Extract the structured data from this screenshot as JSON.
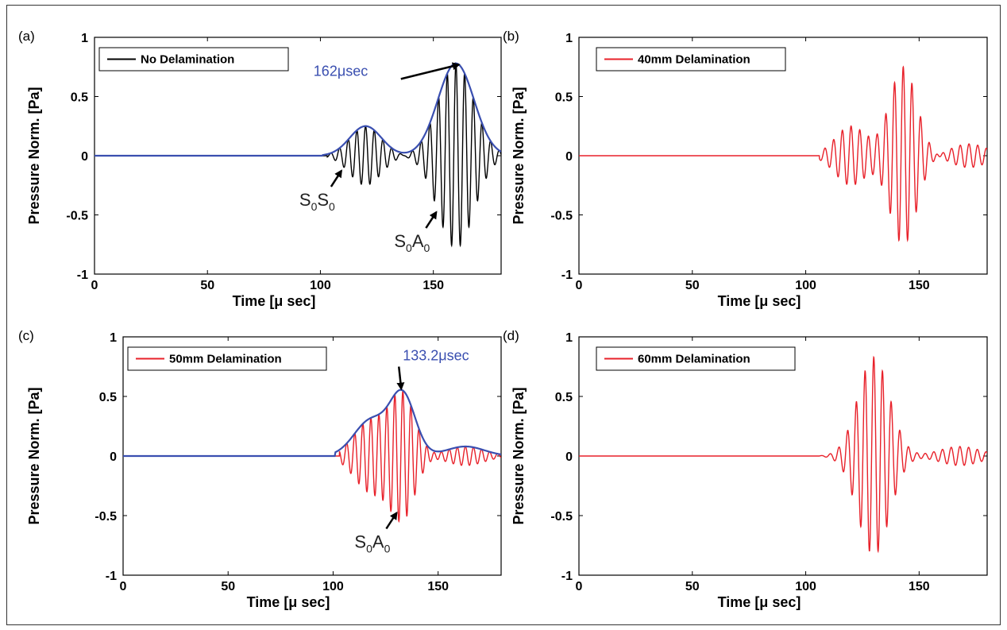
{
  "figure": {
    "panels": [
      {
        "id": "a",
        "letter": "(a)",
        "xlabel": "Time [μ sec]",
        "ylabel": "Pressure Norm. [Pa]",
        "legend": "No Delamination",
        "line_color": "#000000",
        "envelope": true,
        "envelope_color": "#3a4fb0",
        "peak_annotation": "162μsec",
        "mode_labels": [
          {
            "text": "S",
            "sub": "0",
            "text2": "S",
            "sub2": "0",
            "at_x": 110,
            "at_y": -0.1
          },
          {
            "text": "S",
            "sub": "0",
            "text2": "A",
            "sub2": "0",
            "at_x": 152,
            "at_y": -0.45
          }
        ]
      },
      {
        "id": "b",
        "letter": "(b)",
        "xlabel": "Time [μ sec]",
        "ylabel": "Pressure Norm. [Pa]",
        "legend": "40mm Delamination",
        "line_color": "#e8212a",
        "envelope": false
      },
      {
        "id": "c",
        "letter": "(c)",
        "xlabel": "Time [μ sec]",
        "ylabel": "Pressure Norm. [Pa]",
        "legend": "50mm Delamination",
        "line_color": "#e8212a",
        "envelope": true,
        "envelope_color": "#3a4fb0",
        "peak_annotation": "133.2μsec",
        "mode_labels": [
          {
            "text": "S",
            "sub": "0",
            "text2": "A",
            "sub2": "0",
            "at_x": 131,
            "at_y": -0.45
          }
        ]
      },
      {
        "id": "d",
        "letter": "(d)",
        "xlabel": "Time [μ sec]",
        "ylabel": "Pressure Norm. [Pa]",
        "legend": "60mm Delamination",
        "line_color": "#e8212a",
        "envelope": false
      }
    ]
  },
  "chart_data": [
    {
      "type": "line",
      "panel": "a",
      "xlabel": "Time [μ sec]",
      "ylabel": "Pressure Norm. [Pa]",
      "xlim": [
        0,
        180
      ],
      "ylim": [
        -1,
        1
      ],
      "xticks": [
        0,
        50,
        100,
        150
      ],
      "yticks": [
        -1,
        -0.5,
        0,
        0.5,
        1
      ],
      "series": [
        {
          "name": "No Delamination",
          "signal": "tone-burst",
          "packets": [
            {
              "center": 120,
              "width": 7,
              "amplitude": 0.25
            },
            {
              "center": 160,
              "width": 8,
              "amplitude": 0.78
            }
          ],
          "onset": 103,
          "frequency_mhz": 0.26
        }
      ],
      "envelope_peak_time": 162
    },
    {
      "type": "line",
      "panel": "b",
      "xlabel": "Time [μ sec]",
      "ylabel": "Pressure Norm. [Pa]",
      "xlim": [
        0,
        180
      ],
      "ylim": [
        -1,
        1
      ],
      "xticks": [
        0,
        50,
        100,
        150
      ],
      "yticks": [
        -1,
        -0.5,
        0,
        0.5,
        1
      ],
      "series": [
        {
          "name": "40mm Delamination",
          "signal": "tone-burst",
          "packets": [
            {
              "center": 120,
              "width": 7,
              "amplitude": 0.25
            },
            {
              "center": 143,
              "width": 6,
              "amplitude": 0.75
            },
            {
              "center": 172,
              "width": 8,
              "amplitude": 0.1
            }
          ],
          "onset": 106,
          "frequency_mhz": 0.26
        }
      ]
    },
    {
      "type": "line",
      "panel": "c",
      "xlabel": "Time [μ sec]",
      "ylabel": "Pressure Norm. [Pa]",
      "xlim": [
        0,
        180
      ],
      "ylim": [
        -1,
        1
      ],
      "xticks": [
        0,
        50,
        100,
        150
      ],
      "yticks": [
        -1,
        -0.5,
        0,
        0.5,
        1
      ],
      "series": [
        {
          "name": "50mm Delamination",
          "signal": "tone-burst",
          "packets": [
            {
              "center": 118,
              "width": 8,
              "amplitude": 0.3
            },
            {
              "center": 133.2,
              "width": 6,
              "amplitude": 0.5
            },
            {
              "center": 163,
              "width": 9,
              "amplitude": 0.08
            }
          ],
          "onset": 103,
          "frequency_mhz": 0.26
        }
      ],
      "envelope_peak_time": 133.2
    },
    {
      "type": "line",
      "panel": "d",
      "xlabel": "Time [μ sec]",
      "ylabel": "Pressure Norm. [Pa]",
      "xlim": [
        0,
        180
      ],
      "ylim": [
        -1,
        1
      ],
      "xticks": [
        0,
        50,
        100,
        150
      ],
      "yticks": [
        -1,
        -0.5,
        0,
        0.5,
        1
      ],
      "series": [
        {
          "name": "60mm Delamination",
          "signal": "tone-burst",
          "packets": [
            {
              "center": 130,
              "width": 7,
              "amplitude": 0.83
            },
            {
              "center": 168,
              "width": 9,
              "amplitude": 0.08
            }
          ],
          "onset": 106,
          "frequency_mhz": 0.26
        }
      ]
    }
  ]
}
